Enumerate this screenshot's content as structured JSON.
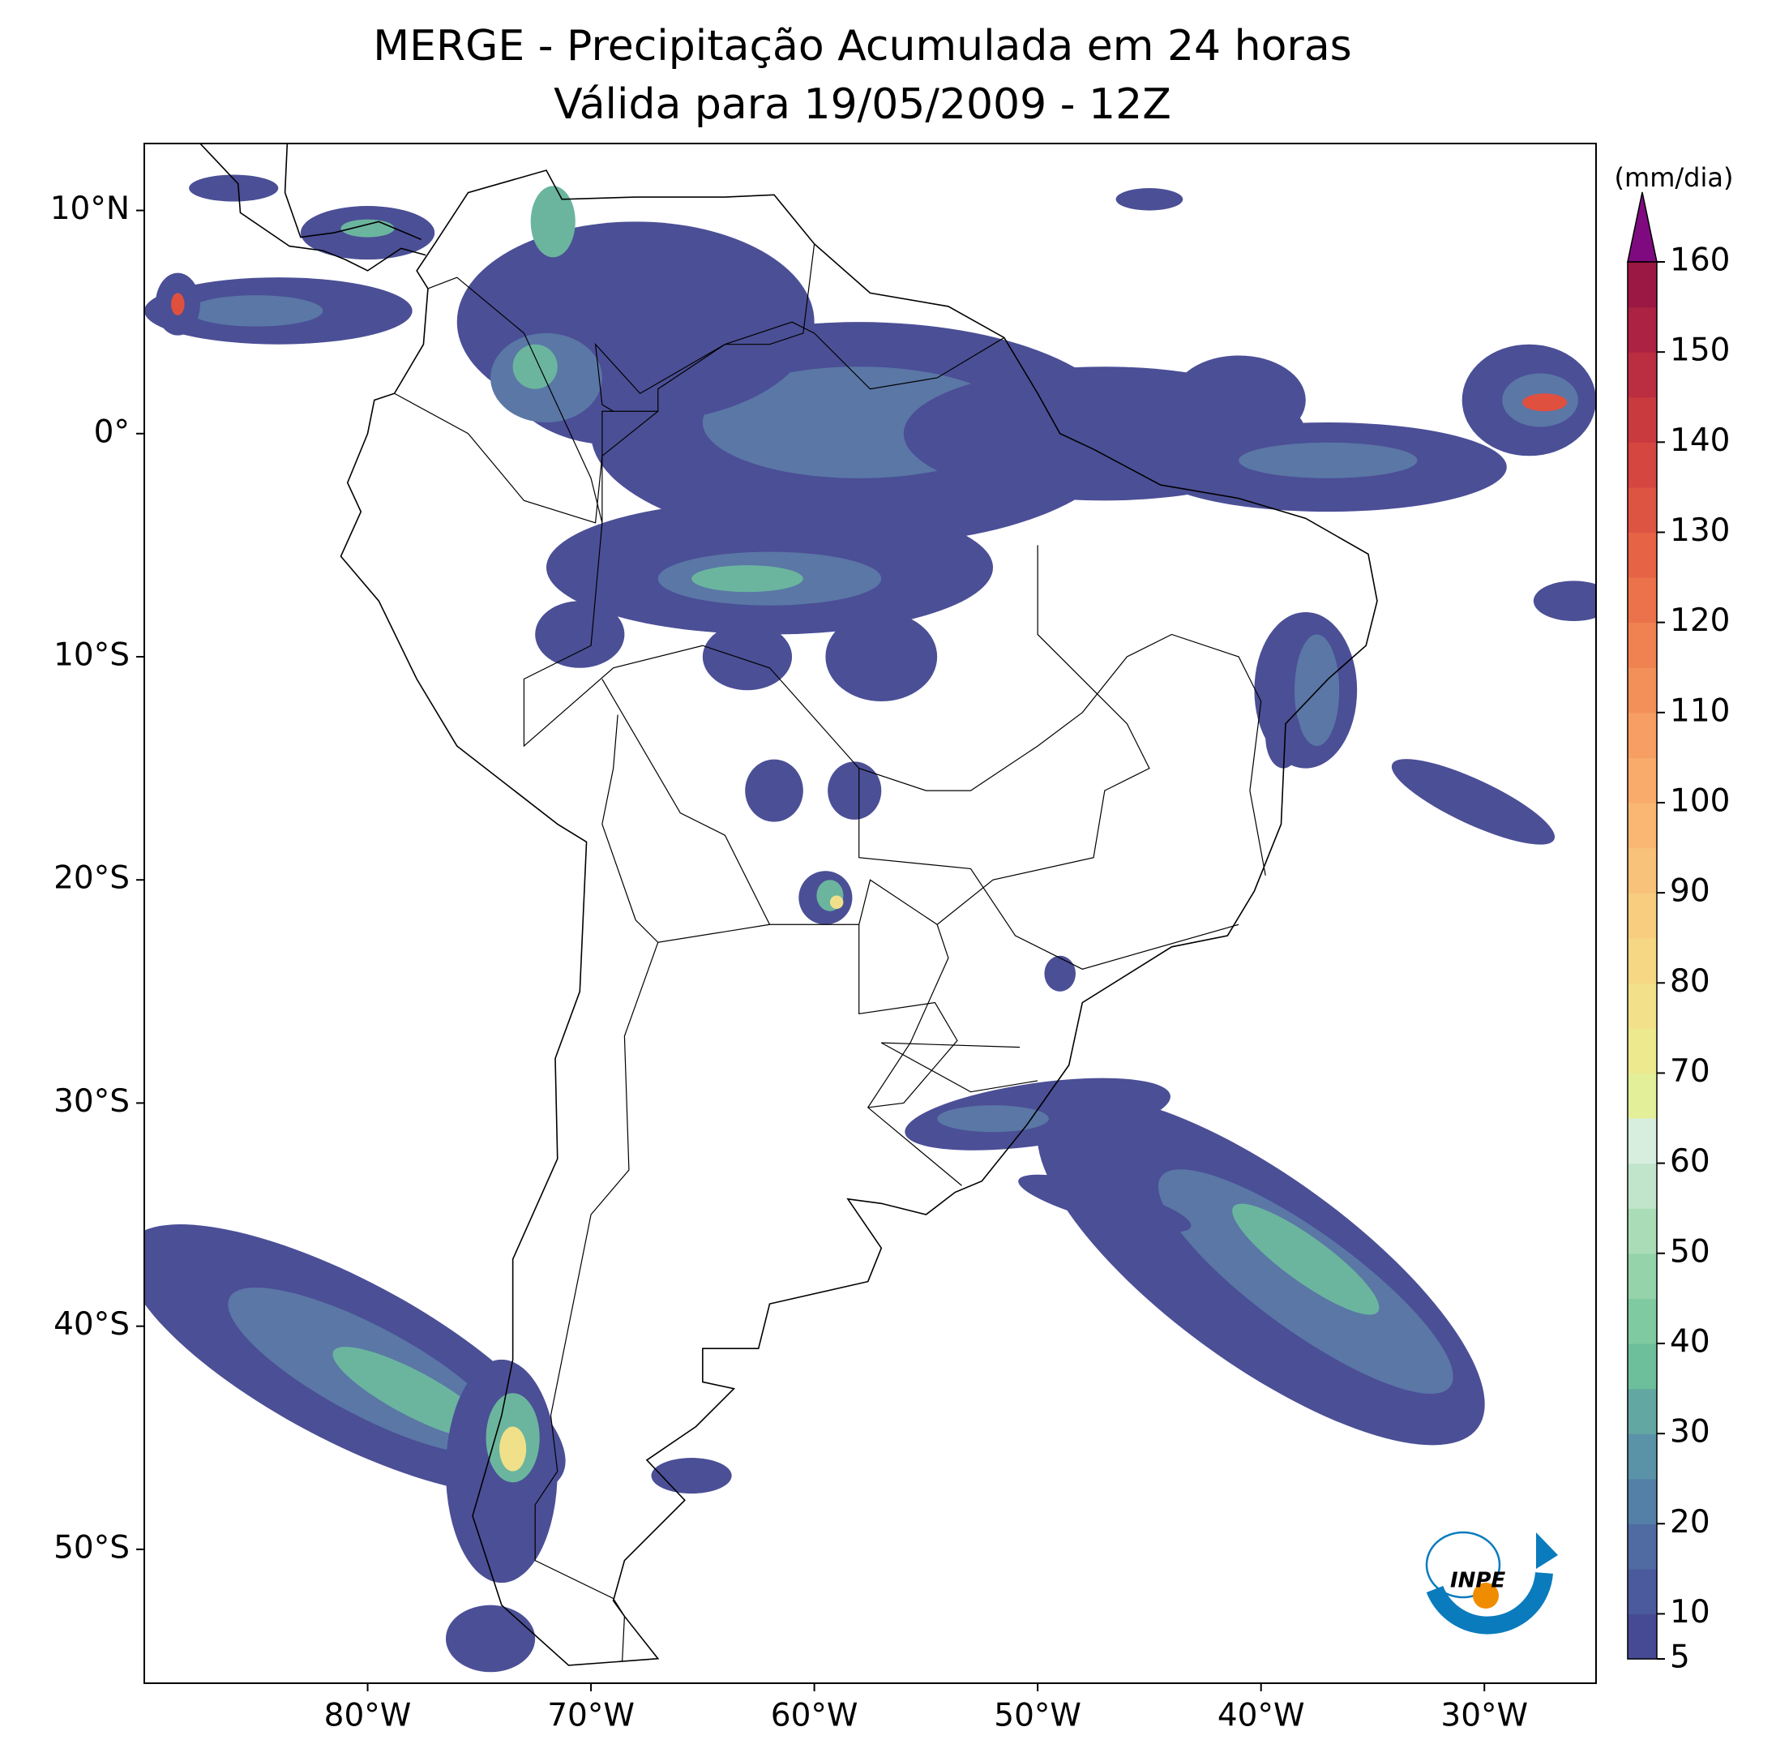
{
  "title": "MERGE - Precipitação Acumulada em 24 horas",
  "subtitle": "Válida para 19/05/2009 - 12Z",
  "map": {
    "xlim": [
      -90,
      -25
    ],
    "ylim": [
      -56,
      13
    ],
    "xticks": [
      {
        "value": -80,
        "label": "80°W"
      },
      {
        "value": -70,
        "label": "70°W"
      },
      {
        "value": -60,
        "label": "60°W"
      },
      {
        "value": -50,
        "label": "50°W"
      },
      {
        "value": -40,
        "label": "40°W"
      },
      {
        "value": -30,
        "label": "30°W"
      }
    ],
    "yticks": [
      {
        "value": 10,
        "label": "10°N"
      },
      {
        "value": 0,
        "label": "0°"
      },
      {
        "value": -10,
        "label": "10°S"
      },
      {
        "value": -20,
        "label": "20°S"
      },
      {
        "value": -30,
        "label": "30°S"
      },
      {
        "value": -40,
        "label": "40°S"
      },
      {
        "value": -50,
        "label": "50°S"
      }
    ]
  },
  "colorbar": {
    "label": "(mm/dia)",
    "lim": [
      5,
      160
    ],
    "ticks": [
      5,
      10,
      20,
      30,
      40,
      50,
      60,
      70,
      80,
      90,
      100,
      110,
      120,
      130,
      140,
      150,
      160
    ],
    "colors": [
      "#464a94",
      "#4a5a9c",
      "#4f6ba2",
      "#5480a8",
      "#5a93a8",
      "#63a7a3",
      "#6cbf9a",
      "#7fcaa0",
      "#95d3aa",
      "#aadcb7",
      "#c0e5ca",
      "#d7eedf",
      "#e4ef9a",
      "#ede98f",
      "#f2e08a",
      "#f6d784",
      "#f8cd7f",
      "#f9c27a",
      "#f9b773",
      "#f8ab6b",
      "#f69e63",
      "#f3905a",
      "#f08252",
      "#ec724b",
      "#e66345",
      "#de5442",
      "#d4463f",
      "#c93a3f",
      "#bb2d40",
      "#ab2242",
      "#9b1844"
    ],
    "extend_color": "#7f0a7f"
  },
  "logo": {
    "text": "INPE"
  }
}
